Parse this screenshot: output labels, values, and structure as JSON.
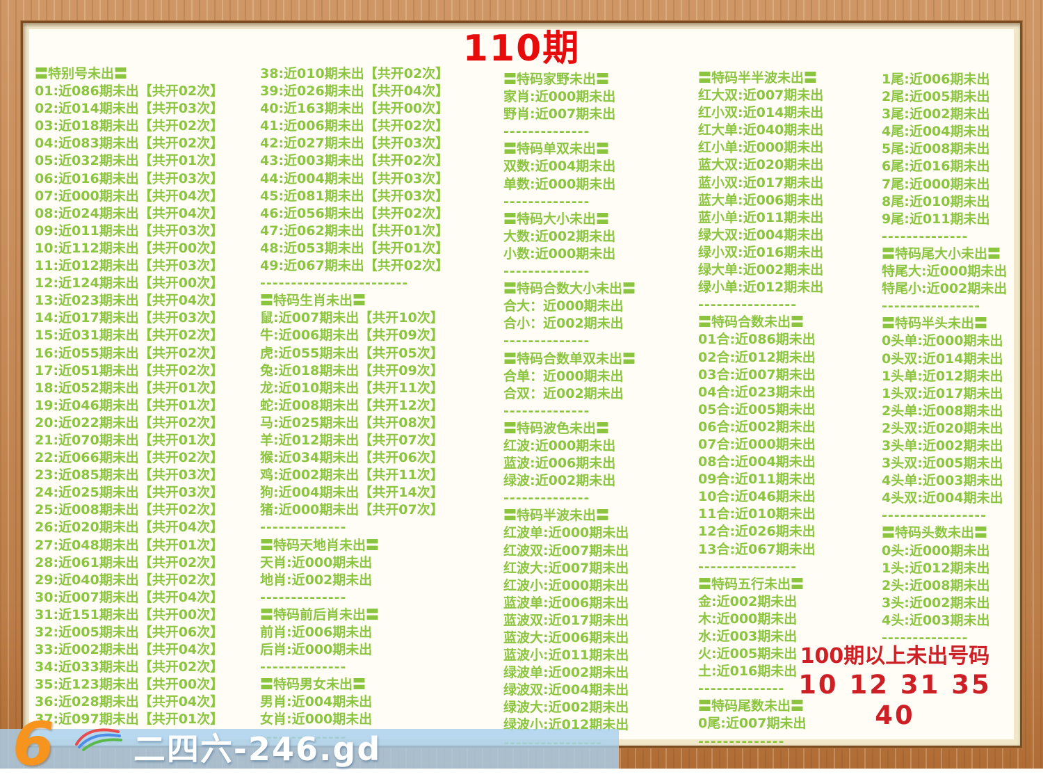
{
  "title": "110期",
  "colors": {
    "text_green": "#8bc53f",
    "title_red": "#e60c0c",
    "footer_red": "#cd2026",
    "frame_wood": "#c68b58",
    "mat_cream": "#f2e8c9",
    "watermark_blue": "#a8d0ee"
  },
  "columns": [
    {
      "lines": [
        {
          "t": "h",
          "x": "〓特别号未出〓"
        },
        {
          "t": "i",
          "x": "01:近086期未出【共开02次】"
        },
        {
          "t": "i",
          "x": "02:近014期未出【共开03次】"
        },
        {
          "t": "i",
          "x": "03:近018期未出【共开02次】"
        },
        {
          "t": "i",
          "x": "04:近083期未出【共开02次】"
        },
        {
          "t": "i",
          "x": "05:近032期未出【共开01次】"
        },
        {
          "t": "i",
          "x": "06:近016期未出【共开03次】"
        },
        {
          "t": "i",
          "x": "07:近000期未出【共开04次】"
        },
        {
          "t": "i",
          "x": "08:近024期未出【共开04次】"
        },
        {
          "t": "i",
          "x": "09:近011期未出【共开03次】"
        },
        {
          "t": "i",
          "x": "10:近112期未出【共开00次】"
        },
        {
          "t": "i",
          "x": "11:近012期未出【共开03次】"
        },
        {
          "t": "i",
          "x": "12:近124期未出【共开00次】"
        },
        {
          "t": "i",
          "x": "13:近023期未出【共开04次】"
        },
        {
          "t": "i",
          "x": "14:近017期未出【共开03次】"
        },
        {
          "t": "i",
          "x": "15:近031期未出【共开02次】"
        },
        {
          "t": "i",
          "x": "16:近055期未出【共开02次】"
        },
        {
          "t": "i",
          "x": "17:近051期未出【共开02次】"
        },
        {
          "t": "i",
          "x": "18:近052期未出【共开01次】"
        },
        {
          "t": "i",
          "x": "19:近046期未出【共开01次】"
        },
        {
          "t": "i",
          "x": "20:近022期未出【共开02次】"
        },
        {
          "t": "i",
          "x": "21:近070期未出【共开01次】"
        },
        {
          "t": "i",
          "x": "22:近066期未出【共开02次】"
        },
        {
          "t": "i",
          "x": "23:近085期未出【共开03次】"
        },
        {
          "t": "i",
          "x": "24:近025期未出【共开03次】"
        },
        {
          "t": "i",
          "x": "25:近008期未出【共开02次】"
        },
        {
          "t": "i",
          "x": "26:近020期未出【共开04次】"
        },
        {
          "t": "i",
          "x": "27:近048期未出【共开01次】"
        },
        {
          "t": "i",
          "x": "28:近061期未出【共开02次】"
        },
        {
          "t": "i",
          "x": "29:近040期未出【共开02次】"
        },
        {
          "t": "i",
          "x": "30:近007期未出【共开04次】"
        },
        {
          "t": "i",
          "x": "31:近151期未出【共开00次】"
        },
        {
          "t": "i",
          "x": "32:近005期未出【共开06次】"
        },
        {
          "t": "i",
          "x": "33:近002期未出【共开04次】"
        },
        {
          "t": "i",
          "x": "34:近033期未出【共开02次】"
        },
        {
          "t": "i",
          "x": "35:近123期未出【共开00次】"
        },
        {
          "t": "i",
          "x": "36:近028期未出【共开04次】"
        },
        {
          "t": "i",
          "x": "37:近097期未出【共开01次】"
        }
      ]
    },
    {
      "lines": [
        {
          "t": "i",
          "x": "38:近010期未出【共开02次】"
        },
        {
          "t": "i",
          "x": "39:近026期未出【共开04次】"
        },
        {
          "t": "i",
          "x": "40:近163期未出【共开00次】"
        },
        {
          "t": "i",
          "x": "41:近006期未出【共开02次】"
        },
        {
          "t": "i",
          "x": "42:近027期未出【共开03次】"
        },
        {
          "t": "i",
          "x": "43:近003期未出【共开02次】"
        },
        {
          "t": "i",
          "x": "44:近004期未出【共开03次】"
        },
        {
          "t": "i",
          "x": "45:近081期未出【共开03次】"
        },
        {
          "t": "i",
          "x": "46:近056期未出【共开02次】"
        },
        {
          "t": "i",
          "x": "47:近062期未出【共开01次】"
        },
        {
          "t": "i",
          "x": "48:近053期未出【共开01次】"
        },
        {
          "t": "i",
          "x": "49:近067期未出【共开02次】"
        },
        {
          "t": "d",
          "x": "------------------------"
        },
        {
          "t": "h",
          "x": "〓特码生肖未出〓"
        },
        {
          "t": "i",
          "x": "鼠:近007期未出【共开10次】"
        },
        {
          "t": "i",
          "x": "牛:近006期未出【共开09次】"
        },
        {
          "t": "i",
          "x": "虎:近055期未出【共开05次】"
        },
        {
          "t": "i",
          "x": "兔:近018期未出【共开09次】"
        },
        {
          "t": "i",
          "x": "龙:近010期未出【共开11次】"
        },
        {
          "t": "i",
          "x": "蛇:近008期未出【共开12次】"
        },
        {
          "t": "i",
          "x": "马:近025期未出【共开08次】"
        },
        {
          "t": "i",
          "x": "羊:近012期未出【共开07次】"
        },
        {
          "t": "i",
          "x": "猴:近034期未出【共开06次】"
        },
        {
          "t": "i",
          "x": "鸡:近002期未出【共开11次】"
        },
        {
          "t": "i",
          "x": "狗:近004期未出【共开14次】"
        },
        {
          "t": "i",
          "x": "猪:近000期未出【共开07次】"
        },
        {
          "t": "d",
          "x": "--------------"
        },
        {
          "t": "h",
          "x": "〓特码天地肖未出〓"
        },
        {
          "t": "i",
          "x": "天肖:近000期未出"
        },
        {
          "t": "i",
          "x": "地肖:近002期未出"
        },
        {
          "t": "d",
          "x": "--------------"
        },
        {
          "t": "h",
          "x": "〓特码前后肖未出〓"
        },
        {
          "t": "i",
          "x": "前肖:近006期未出"
        },
        {
          "t": "i",
          "x": "后肖:近000期未出"
        },
        {
          "t": "d",
          "x": "--------------"
        },
        {
          "t": "h",
          "x": "〓特码男女未出〓"
        },
        {
          "t": "i",
          "x": "男肖:近004期未出"
        },
        {
          "t": "i",
          "x": "女肖:近000期未出"
        },
        {
          "t": "d",
          "x": "--------------"
        }
      ]
    },
    {
      "lines": [
        {
          "t": "h",
          "x": "〓特码家野未出〓"
        },
        {
          "t": "i",
          "x": "家肖:近000期未出"
        },
        {
          "t": "i",
          "x": "野肖:近007期未出"
        },
        {
          "t": "d",
          "x": "--------------"
        },
        {
          "t": "h",
          "x": "〓特码单双未出〓"
        },
        {
          "t": "i",
          "x": "双数:近004期未出"
        },
        {
          "t": "i",
          "x": "单数:近000期未出"
        },
        {
          "t": "d",
          "x": "--------------"
        },
        {
          "t": "h",
          "x": "〓特码大小未出〓"
        },
        {
          "t": "i",
          "x": "大数:近002期未出"
        },
        {
          "t": "i",
          "x": "小数:近000期未出"
        },
        {
          "t": "d",
          "x": "--------------"
        },
        {
          "t": "h",
          "x": "〓特码合数大小未出〓"
        },
        {
          "t": "i",
          "x": "合大：近000期未出"
        },
        {
          "t": "i",
          "x": "合小：近002期未出"
        },
        {
          "t": "d",
          "x": "--------------"
        },
        {
          "t": "h",
          "x": "〓特码合数单双未出〓"
        },
        {
          "t": "i",
          "x": "合单：近000期未出"
        },
        {
          "t": "i",
          "x": "合双：近002期未出"
        },
        {
          "t": "d",
          "x": "--------------"
        },
        {
          "t": "h",
          "x": "〓特码波色未出〓"
        },
        {
          "t": "i",
          "x": "红波:近000期未出"
        },
        {
          "t": "i",
          "x": "蓝波:近006期未出"
        },
        {
          "t": "i",
          "x": "绿波:近002期未出"
        },
        {
          "t": "d",
          "x": "--------------"
        },
        {
          "t": "h",
          "x": "〓特码半波未出〓"
        },
        {
          "t": "i",
          "x": "红波单:近000期未出"
        },
        {
          "t": "i",
          "x": "红波双:近007期未出"
        },
        {
          "t": "i",
          "x": "红波大:近007期未出"
        },
        {
          "t": "i",
          "x": "红波小:近000期未出"
        },
        {
          "t": "i",
          "x": "蓝波单:近006期未出"
        },
        {
          "t": "i",
          "x": "蓝波双:近017期未出"
        },
        {
          "t": "i",
          "x": "蓝波大:近006期未出"
        },
        {
          "t": "i",
          "x": "蓝波小:近011期未出"
        },
        {
          "t": "i",
          "x": "绿波单:近002期未出"
        },
        {
          "t": "i",
          "x": "绿波双:近004期未出"
        },
        {
          "t": "i",
          "x": "绿波大:近002期未出"
        },
        {
          "t": "i",
          "x": "绿波小:近012期未出"
        },
        {
          "t": "d",
          "x": "----------------"
        }
      ]
    },
    {
      "lines": [
        {
          "t": "h",
          "x": "〓特码半半波未出〓"
        },
        {
          "t": "i",
          "x": "红大双:近007期未出"
        },
        {
          "t": "i",
          "x": "红小双:近014期未出"
        },
        {
          "t": "i",
          "x": "红大单:近040期未出"
        },
        {
          "t": "i",
          "x": "红小单:近000期未出"
        },
        {
          "t": "i",
          "x": "蓝大双:近020期未出"
        },
        {
          "t": "i",
          "x": "蓝小双:近017期未出"
        },
        {
          "t": "i",
          "x": "蓝大单:近006期未出"
        },
        {
          "t": "i",
          "x": "蓝小单:近011期未出"
        },
        {
          "t": "i",
          "x": "绿大双:近004期未出"
        },
        {
          "t": "i",
          "x": "绿小双:近016期未出"
        },
        {
          "t": "i",
          "x": "绿大单:近002期未出"
        },
        {
          "t": "i",
          "x": "绿小单:近012期未出"
        },
        {
          "t": "d",
          "x": "----------------"
        },
        {
          "t": "h",
          "x": "〓特码合数未出〓"
        },
        {
          "t": "i",
          "x": "01合:近086期未出"
        },
        {
          "t": "i",
          "x": "02合:近012期未出"
        },
        {
          "t": "i",
          "x": "03合:近007期未出"
        },
        {
          "t": "i",
          "x": "04合:近023期未出"
        },
        {
          "t": "i",
          "x": "05合:近005期未出"
        },
        {
          "t": "i",
          "x": "06合:近002期未出"
        },
        {
          "t": "i",
          "x": "07合:近000期未出"
        },
        {
          "t": "i",
          "x": "08合:近004期未出"
        },
        {
          "t": "i",
          "x": "09合:近011期未出"
        },
        {
          "t": "i",
          "x": "10合:近046期未出"
        },
        {
          "t": "i",
          "x": "11合:近010期未出"
        },
        {
          "t": "i",
          "x": "12合:近026期未出"
        },
        {
          "t": "i",
          "x": "13合:近067期未出"
        },
        {
          "t": "d",
          "x": "----------------"
        },
        {
          "t": "h",
          "x": "〓特码五行未出〓"
        },
        {
          "t": "i",
          "x": "金:近002期未出"
        },
        {
          "t": "i",
          "x": "木:近000期未出"
        },
        {
          "t": "i",
          "x": "水:近003期未出"
        },
        {
          "t": "i",
          "x": "火:近005期未出"
        },
        {
          "t": "i",
          "x": "土:近016期未出"
        },
        {
          "t": "d",
          "x": "--------------"
        },
        {
          "t": "h",
          "x": "〓特码尾数未出〓"
        },
        {
          "t": "i",
          "x": "0尾:近007期未出"
        },
        {
          "t": "d",
          "x": "--------------"
        }
      ]
    },
    {
      "lines": [
        {
          "t": "i",
          "x": "1尾:近006期未出"
        },
        {
          "t": "i",
          "x": "2尾:近005期未出"
        },
        {
          "t": "i",
          "x": "3尾:近002期未出"
        },
        {
          "t": "i",
          "x": "4尾:近004期未出"
        },
        {
          "t": "i",
          "x": "5尾:近008期未出"
        },
        {
          "t": "i",
          "x": "6尾:近016期未出"
        },
        {
          "t": "i",
          "x": "7尾:近000期未出"
        },
        {
          "t": "i",
          "x": "8尾:近010期未出"
        },
        {
          "t": "i",
          "x": "9尾:近011期未出"
        },
        {
          "t": "d",
          "x": "--------------"
        },
        {
          "t": "h",
          "x": "〓特码尾大小未出〓"
        },
        {
          "t": "i",
          "x": "特尾大:近000期未出"
        },
        {
          "t": "i",
          "x": "特尾小:近002期未出"
        },
        {
          "t": "d",
          "x": "----------------"
        },
        {
          "t": "h",
          "x": "〓特码半头未出〓"
        },
        {
          "t": "i",
          "x": "0头单:近000期未出"
        },
        {
          "t": "i",
          "x": "0头双:近014期未出"
        },
        {
          "t": "i",
          "x": "1头单:近012期未出"
        },
        {
          "t": "i",
          "x": "1头双:近017期未出"
        },
        {
          "t": "i",
          "x": "2头单:近008期未出"
        },
        {
          "t": "i",
          "x": "2头双:近020期未出"
        },
        {
          "t": "i",
          "x": "3头单:近002期未出"
        },
        {
          "t": "i",
          "x": "3头双:近005期未出"
        },
        {
          "t": "i",
          "x": "4头单:近003期未出"
        },
        {
          "t": "i",
          "x": "4头双:近004期未出"
        },
        {
          "t": "d",
          "x": "-----------------"
        },
        {
          "t": "h",
          "x": "〓特码头数未出〓"
        },
        {
          "t": "i",
          "x": "0头:近000期未出"
        },
        {
          "t": "i",
          "x": "1头:近012期未出"
        },
        {
          "t": "i",
          "x": "2头:近008期未出"
        },
        {
          "t": "i",
          "x": "3头:近002期未出"
        },
        {
          "t": "i",
          "x": "4头:近003期未出"
        },
        {
          "t": "d",
          "x": "--------------"
        }
      ]
    }
  ],
  "footer": {
    "line1": "100期以上未出号码",
    "line2": "10 12 31 35 40"
  },
  "watermark": {
    "logo_six": "6",
    "text": "二四六-246.gd"
  }
}
